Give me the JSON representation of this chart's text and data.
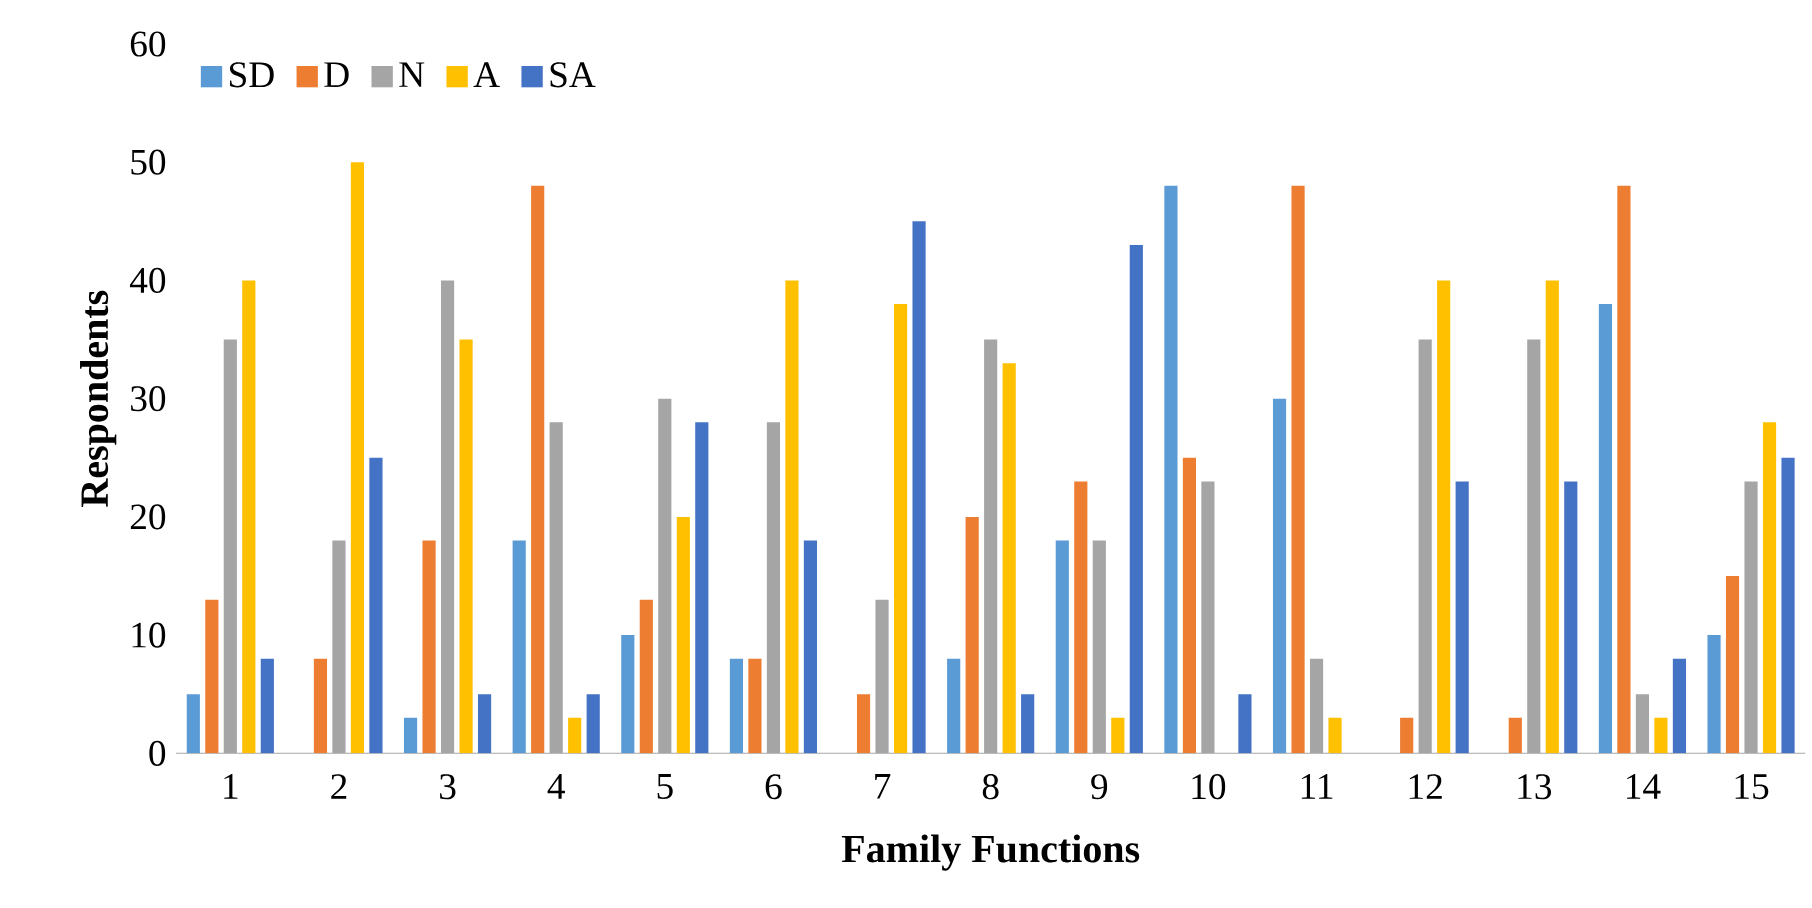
{
  "chart_data": {
    "type": "bar",
    "xlabel": "Family Functions",
    "ylabel": "Respondents",
    "categories": [
      "1",
      "2",
      "3",
      "4",
      "5",
      "6",
      "7",
      "8",
      "9",
      "10",
      "11",
      "12",
      "13",
      "14",
      "15"
    ],
    "series": [
      {
        "name": "SD",
        "color": "#5b9bd5",
        "values": [
          5,
          0,
          3,
          18,
          10,
          8,
          0,
          8,
          18,
          48,
          30,
          0,
          0,
          38,
          10
        ]
      },
      {
        "name": "D",
        "color": "#ed7d31",
        "values": [
          13,
          8,
          18,
          48,
          13,
          8,
          5,
          20,
          23,
          25,
          48,
          3,
          3,
          48,
          15
        ]
      },
      {
        "name": "N",
        "color": "#a5a5a5",
        "values": [
          35,
          18,
          40,
          28,
          30,
          28,
          13,
          35,
          18,
          23,
          8,
          35,
          35,
          5,
          23
        ]
      },
      {
        "name": "A",
        "color": "#ffc000",
        "values": [
          40,
          50,
          35,
          3,
          20,
          40,
          38,
          33,
          3,
          0,
          3,
          40,
          40,
          3,
          28
        ]
      },
      {
        "name": "SA",
        "color": "#4472c4",
        "values": [
          8,
          25,
          5,
          5,
          28,
          18,
          45,
          5,
          43,
          5,
          0,
          23,
          23,
          8,
          25
        ]
      }
    ],
    "ylim": [
      0,
      60
    ],
    "yticks": [
      0,
      10,
      20,
      30,
      40,
      50,
      60
    ],
    "legend": "top left"
  }
}
